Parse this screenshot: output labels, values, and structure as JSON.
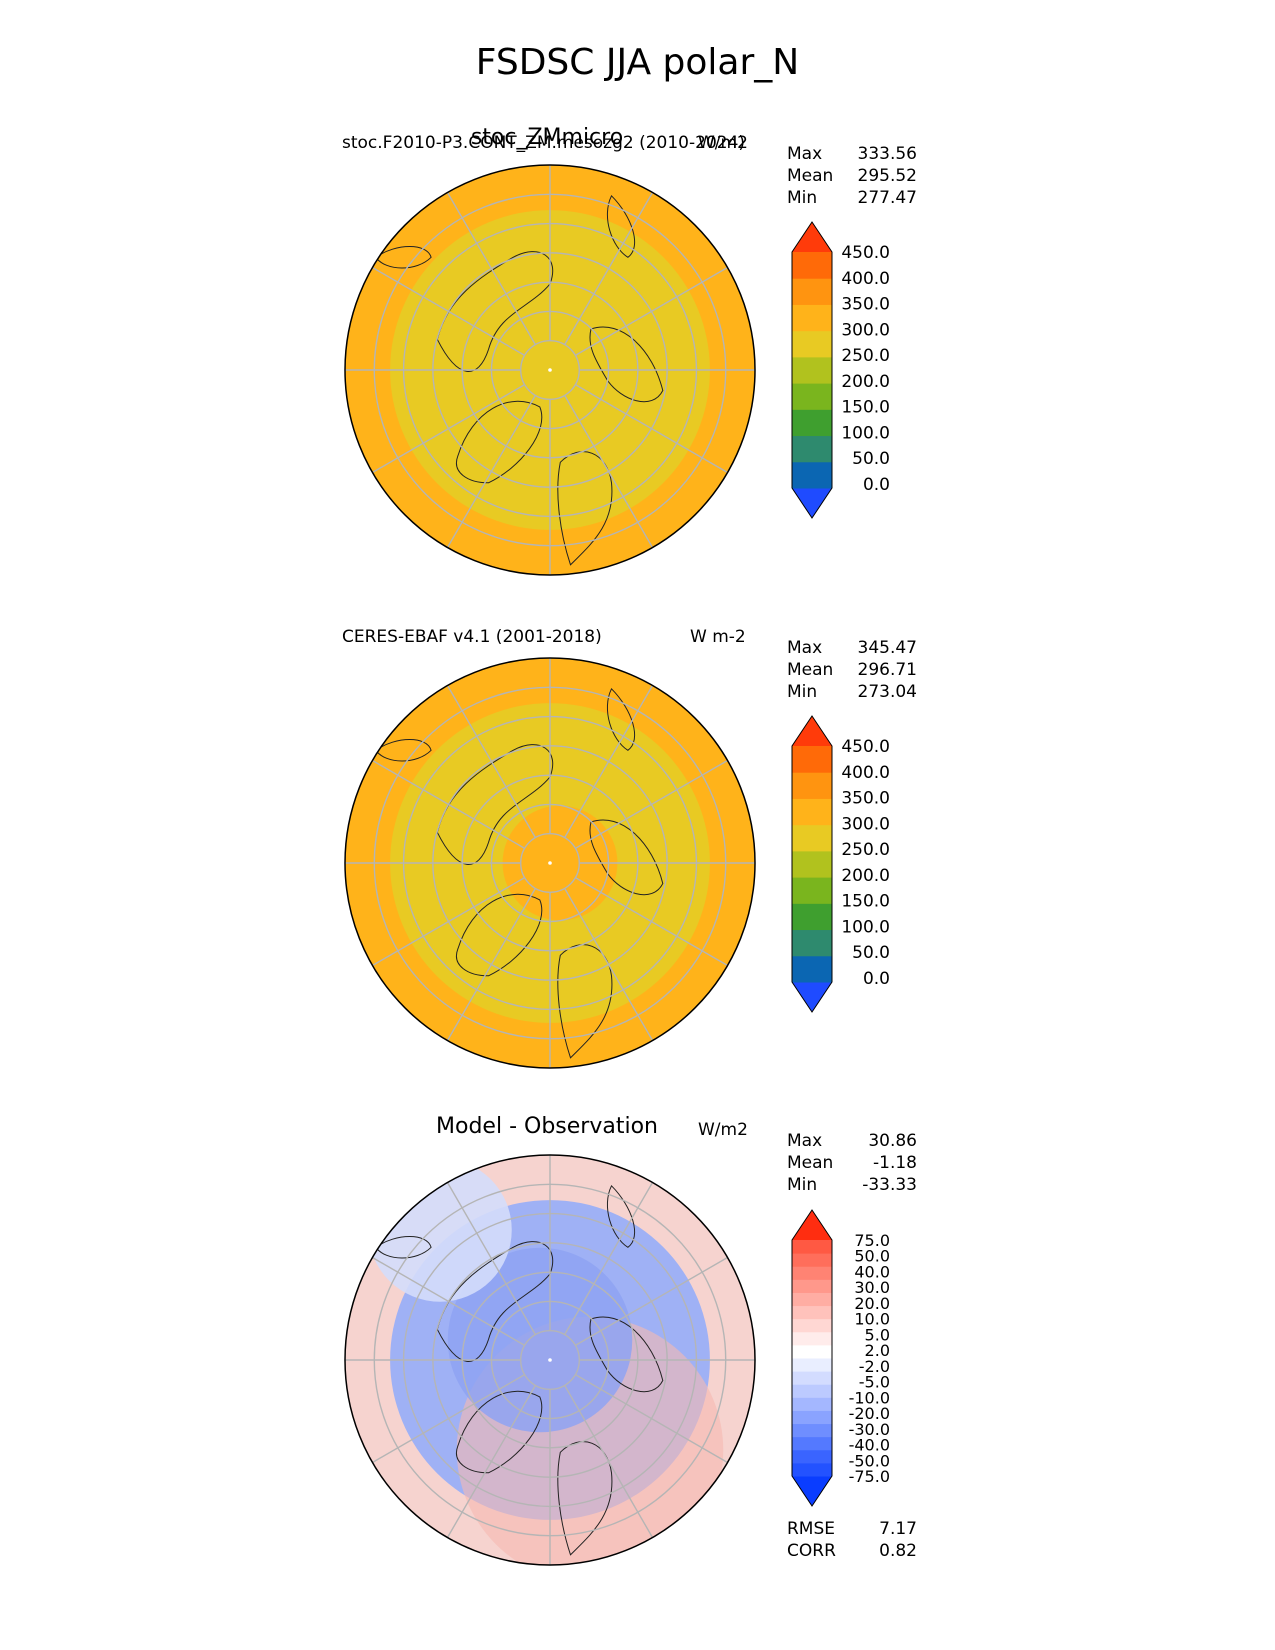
{
  "figure_title": "FSDSC JJA polar_N",
  "panels": [
    {
      "left_title": "stoc.F2010-P3.CONT_ZM.mesozg2 (2010-2024)",
      "center_title": "stoc_ZMmicro",
      "units": "W/m2",
      "stats": {
        "max_label": "Max",
        "max": "333.56",
        "mean_label": "Mean",
        "mean": "295.52",
        "min_label": "Min",
        "min": "277.47"
      },
      "colorbar": {
        "colors": [
          "#1f4bff",
          "#0b66b2",
          "#2e8a6e",
          "#3f9f2f",
          "#7ab51e",
          "#b1c21e",
          "#e8ca23",
          "#ffb31a",
          "#ff9410",
          "#ff6a08",
          "#ff3b0a"
        ],
        "tick_labels": [
          "0.0",
          "50.0",
          "100.0",
          "150.0",
          "200.0",
          "250.0",
          "300.0",
          "350.0",
          "400.0",
          "450.0"
        ]
      },
      "map": {
        "outer_color": "#ffb31a",
        "inner_color": "#e8ca23"
      }
    },
    {
      "left_title": "CERES-EBAF v4.1 (2001-2018)",
      "center_title": "",
      "units": "W m-2",
      "stats": {
        "max_label": "Max",
        "max": "345.47",
        "mean_label": "Mean",
        "mean": "296.71",
        "min_label": "Min",
        "min": "273.04"
      },
      "colorbar": {
        "colors": [
          "#1f4bff",
          "#0b66b2",
          "#2e8a6e",
          "#3f9f2f",
          "#7ab51e",
          "#b1c21e",
          "#e8ca23",
          "#ffb31a",
          "#ff9410",
          "#ff6a08",
          "#ff3b0a"
        ],
        "tick_labels": [
          "0.0",
          "50.0",
          "100.0",
          "150.0",
          "200.0",
          "250.0",
          "300.0",
          "350.0",
          "400.0",
          "450.0"
        ]
      },
      "map": {
        "outer_color": "#ffb31a",
        "inner_color": "#e8ca23"
      }
    },
    {
      "left_title": "",
      "center_title": "Model - Observation",
      "units": "W/m2",
      "stats": {
        "max_label": "Max",
        "max": "30.86",
        "mean_label": "Mean",
        "mean": "-1.18",
        "min_label": "Min",
        "min": "-33.33"
      },
      "extra_stats": {
        "rmse_label": "RMSE",
        "rmse": "7.17",
        "corr_label": "CORR",
        "corr": "0.82"
      },
      "colorbar": {
        "colors": [
          "#0a3dff",
          "#2352ff",
          "#3a64ff",
          "#5479ff",
          "#6f8eff",
          "#8aa3ff",
          "#a4b7ff",
          "#bccaff",
          "#d3dcff",
          "#e9eeff",
          "#ffffff",
          "#ffeceb",
          "#ffd7d3",
          "#ffc2bb",
          "#ffada3",
          "#ff988b",
          "#ff8373",
          "#ff6e5b",
          "#ff5943",
          "#ff2d10"
        ],
        "tick_labels": [
          "-75.0",
          "-50.0",
          "-40.0",
          "-30.0",
          "-20.0",
          "-10.0",
          "-5.0",
          "-2.0",
          "2.0",
          "5.0",
          "10.0",
          "20.0",
          "30.0",
          "40.0",
          "50.0",
          "75.0"
        ]
      },
      "map": {
        "outer_color": "#f6d3cf",
        "inner_color": "#9fb1f5"
      }
    }
  ]
}
